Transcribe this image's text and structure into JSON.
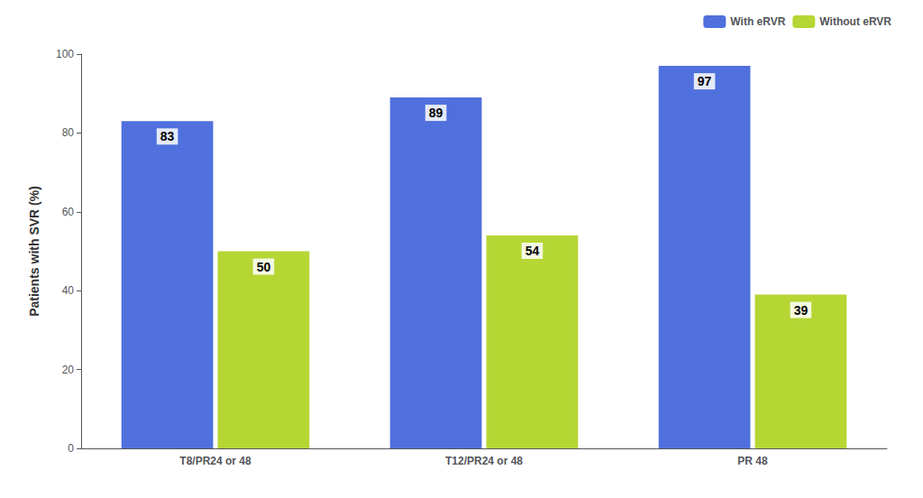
{
  "chart_data": {
    "type": "bar",
    "ylabel": "Patients with SVR (%)",
    "categories": [
      "T8/PR24 or 48",
      "T12/PR24 or 48",
      "PR 48"
    ],
    "series": [
      {
        "name": "With eRVR",
        "values": [
          83,
          89,
          97
        ]
      },
      {
        "name": "Without eRVR",
        "values": [
          50,
          54,
          39
        ]
      }
    ],
    "ylim": [
      0,
      100
    ],
    "yticks": [
      0,
      20,
      40,
      60,
      80,
      100
    ],
    "grid": false,
    "legend": "upper right",
    "data_labels": true
  }
}
